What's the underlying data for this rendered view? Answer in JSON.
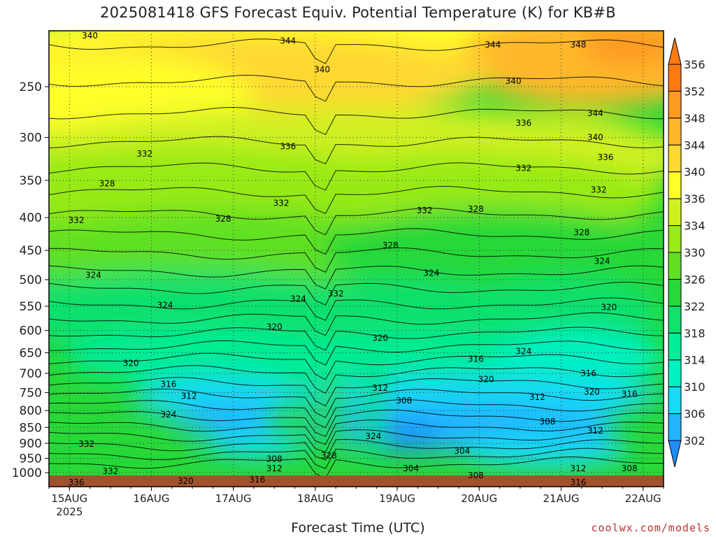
{
  "title": "2025081418 GFS Forecast Equiv. Potential Temperature (K) for KB#B",
  "credit": "coolwx.com/models",
  "chart_data": {
    "type": "heatmap",
    "title": "2025081418 GFS Forecast Equiv. Potential Temperature (K) for KB#B",
    "xlabel": "Forecast Time (UTC)",
    "ylabel": "",
    "x_ticks": [
      {
        "label": "15AUG",
        "sub": "2025",
        "hours": 6
      },
      {
        "label": "16AUG",
        "sub": "",
        "hours": 30
      },
      {
        "label": "17AUG",
        "sub": "",
        "hours": 54
      },
      {
        "label": "18AUG",
        "sub": "",
        "hours": 78
      },
      {
        "label": "19AUG",
        "sub": "",
        "hours": 102
      },
      {
        "label": "20AUG",
        "sub": "",
        "hours": 126
      },
      {
        "label": "21AUG",
        "sub": "",
        "hours": 150
      },
      {
        "label": "22AUG",
        "sub": "",
        "hours": 174
      }
    ],
    "x_range_hours": [
      0,
      180
    ],
    "y_axis": "pressure (hPa), log scale, inverted",
    "y_ticks": [
      250,
      300,
      350,
      400,
      450,
      500,
      550,
      600,
      650,
      700,
      750,
      800,
      850,
      900,
      950,
      1000
    ],
    "y_range": [
      200,
      1020
    ],
    "colorbar": {
      "levels": [
        302,
        306,
        310,
        314,
        318,
        322,
        326,
        330,
        334,
        336,
        340,
        344,
        348,
        352,
        356
      ],
      "colors": [
        "#1f8fff",
        "#23b3ff",
        "#19d9f5",
        "#00f0c0",
        "#00ec96",
        "#10e06c",
        "#28d838",
        "#60e020",
        "#98ea18",
        "#d0f020",
        "#ffff2a",
        "#ffd830",
        "#ffb82c",
        "#ff9a20",
        "#ff7a10"
      ]
    },
    "series": [
      {
        "name": "",
        "x": [
          0,
          12,
          24,
          36,
          48,
          60,
          72,
          84,
          96,
          108,
          120,
          132,
          144,
          156,
          168,
          180
        ],
        "values": [
          0,
          0,
          0,
          0,
          0,
          0,
          0,
          0,
          0,
          0,
          0,
          0,
          0,
          0,
          0,
          0
        ]
      }
    ],
    "contour_labels": [
      {
        "text": "340",
        "hours": 12,
        "p": 208
      },
      {
        "text": "344",
        "hours": 70,
        "p": 212
      },
      {
        "text": "344",
        "hours": 130,
        "p": 215
      },
      {
        "text": "348",
        "hours": 155,
        "p": 215
      },
      {
        "text": "340",
        "hours": 80,
        "p": 235
      },
      {
        "text": "340",
        "hours": 136,
        "p": 245
      },
      {
        "text": "344",
        "hours": 160,
        "p": 275
      },
      {
        "text": "336",
        "hours": 139,
        "p": 285
      },
      {
        "text": "340",
        "hours": 160,
        "p": 300
      },
      {
        "text": "336",
        "hours": 70,
        "p": 310
      },
      {
        "text": "332",
        "hours": 28,
        "p": 318
      },
      {
        "text": "336",
        "hours": 163,
        "p": 322
      },
      {
        "text": "332",
        "hours": 139,
        "p": 335
      },
      {
        "text": "328",
        "hours": 17,
        "p": 354
      },
      {
        "text": "332",
        "hours": 161,
        "p": 362
      },
      {
        "text": "332",
        "hours": 68,
        "p": 380
      },
      {
        "text": "332",
        "hours": 110,
        "p": 390
      },
      {
        "text": "328",
        "hours": 125,
        "p": 388
      },
      {
        "text": "332",
        "hours": 8,
        "p": 404
      },
      {
        "text": "328",
        "hours": 51,
        "p": 402
      },
      {
        "text": "328",
        "hours": 156,
        "p": 422
      },
      {
        "text": "328",
        "hours": 100,
        "p": 442
      },
      {
        "text": "324",
        "hours": 162,
        "p": 468
      },
      {
        "text": "324",
        "hours": 112,
        "p": 488
      },
      {
        "text": "324",
        "hours": 13,
        "p": 492
      },
      {
        "text": "332",
        "hours": 84,
        "p": 526
      },
      {
        "text": "324",
        "hours": 73,
        "p": 536
      },
      {
        "text": "324",
        "hours": 34,
        "p": 548
      },
      {
        "text": "320",
        "hours": 164,
        "p": 552
      },
      {
        "text": "320",
        "hours": 66,
        "p": 592
      },
      {
        "text": "320",
        "hours": 97,
        "p": 617
      },
      {
        "text": "324",
        "hours": 139,
        "p": 647
      },
      {
        "text": "316",
        "hours": 125,
        "p": 665
      },
      {
        "text": "320",
        "hours": 24,
        "p": 675
      },
      {
        "text": "316",
        "hours": 158,
        "p": 700
      },
      {
        "text": "320",
        "hours": 128,
        "p": 715
      },
      {
        "text": "316",
        "hours": 35,
        "p": 728
      },
      {
        "text": "312",
        "hours": 97,
        "p": 738
      },
      {
        "text": "320",
        "hours": 159,
        "p": 748
      },
      {
        "text": "316",
        "hours": 170,
        "p": 754
      },
      {
        "text": "312",
        "hours": 41,
        "p": 760
      },
      {
        "text": "312",
        "hours": 143,
        "p": 762
      },
      {
        "text": "308",
        "hours": 104,
        "p": 772
      },
      {
        "text": "324",
        "hours": 35,
        "p": 812
      },
      {
        "text": "308",
        "hours": 146,
        "p": 832
      },
      {
        "text": "312",
        "hours": 160,
        "p": 860
      },
      {
        "text": "324",
        "hours": 95,
        "p": 878
      },
      {
        "text": "332",
        "hours": 11,
        "p": 902
      },
      {
        "text": "304",
        "hours": 121,
        "p": 925
      },
      {
        "text": "328",
        "hours": 82,
        "p": 940
      },
      {
        "text": "308",
        "hours": 66,
        "p": 952
      },
      {
        "text": "312",
        "hours": 66,
        "p": 985
      },
      {
        "text": "304",
        "hours": 106,
        "p": 985
      },
      {
        "text": "312",
        "hours": 155,
        "p": 985
      },
      {
        "text": "308",
        "hours": 170,
        "p": 985
      },
      {
        "text": "332",
        "hours": 18,
        "p": 995
      },
      {
        "text": "308",
        "hours": 125,
        "p": 1010
      },
      {
        "text": "316",
        "hours": 61,
        "p": 1025
      },
      {
        "text": "320",
        "hours": 40,
        "p": 1030
      },
      {
        "text": "316",
        "hours": 155,
        "p": 1040
      },
      {
        "text": "336",
        "hours": 8,
        "p": 1050
      }
    ]
  }
}
